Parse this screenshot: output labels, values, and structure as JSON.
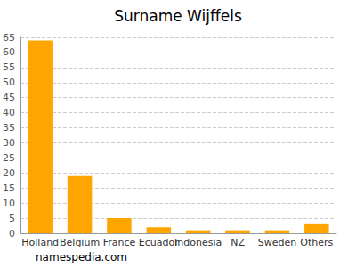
{
  "chart_data": {
    "type": "bar",
    "title": "Surname Wijffels",
    "categories": [
      "Holland",
      "Belgium",
      "France",
      "Ecuador",
      "Indonesia",
      "NZ",
      "Sweden",
      "Others"
    ],
    "values": [
      64,
      19,
      5,
      2,
      1,
      1,
      1,
      3
    ],
    "color": "#ffa500",
    "ylim": [
      0,
      65
    ],
    "yticks": [
      0,
      5,
      10,
      15,
      20,
      25,
      30,
      35,
      40,
      45,
      50,
      55,
      60,
      65
    ],
    "grid": true,
    "annotation": "namespedia.com"
  }
}
